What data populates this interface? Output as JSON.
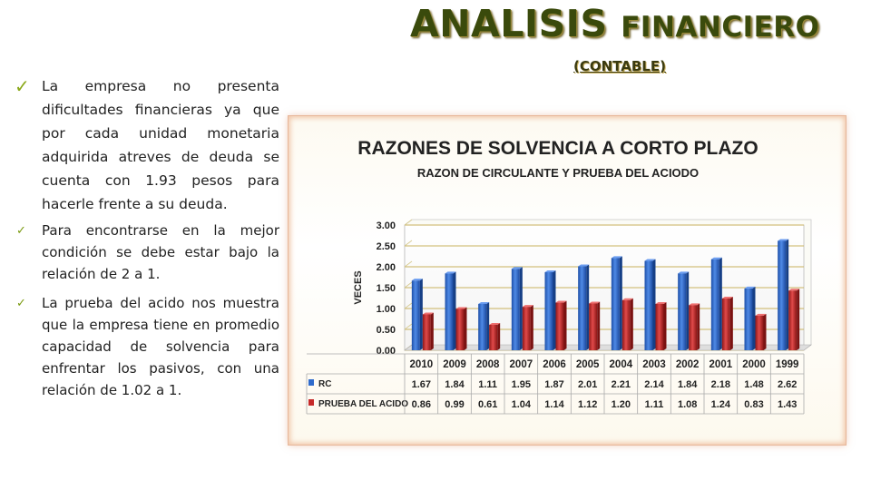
{
  "slide": {
    "title_main": "ANALISIS",
    "title_second": "FINANCIERO",
    "subtitle": "(CONTABLE)",
    "bullets": [
      "La empresa no presenta dificultades financieras ya que por cada unidad monetaria adquirida atreves de deuda se cuenta con 1.93 pesos para hacerle frente a su deuda.",
      "Para encontrarse en la mejor condición se debe estar bajo la relación de 2 a 1.",
      "La prueba del acido nos muestra que la empresa tiene en promedio capacidad de solvencia para enfrentar los pasivos, con una relación de 1.02 a 1."
    ]
  },
  "chart_data": {
    "type": "bar",
    "title": "RAZONES DE SOLVENCIA A CORTO PLAZO",
    "subtitle": "RAZON DE CIRCULANTE Y PRUEBA DEL ACIODO",
    "ylabel": "VECES",
    "xlabel": "",
    "ylim": [
      0,
      3
    ],
    "yticks": [
      "0.00",
      "0.50",
      "1.00",
      "1.50",
      "2.00",
      "2.50",
      "3.00"
    ],
    "categories": [
      "2010",
      "2009",
      "2008",
      "2007",
      "2006",
      "2005",
      "2004",
      "2003",
      "2002",
      "2001",
      "2000",
      "1999"
    ],
    "series": [
      {
        "name": "RC",
        "color": "#2f6bcc",
        "values": [
          1.67,
          1.84,
          1.11,
          1.95,
          1.87,
          2.01,
          2.21,
          2.14,
          1.84,
          2.18,
          1.48,
          2.62
        ],
        "labels": [
          "1.67",
          "1.84",
          "1.11",
          "1.95",
          "1.87",
          "2.01",
          "2.21",
          "2.14",
          "1.84",
          "2.18",
          "1.48",
          "2.62"
        ]
      },
      {
        "name": "PRUEBA DEL ACIDO",
        "color": "#c62a2a",
        "values": [
          0.86,
          0.99,
          0.61,
          1.04,
          1.14,
          1.12,
          1.2,
          1.11,
          1.08,
          1.24,
          0.83,
          1.43
        ],
        "labels": [
          "0.86",
          "0.99",
          "0.61",
          "1.04",
          "1.14",
          "1.12",
          "1.20",
          "1.11",
          "1.08",
          "1.24",
          "0.83",
          "1.43"
        ]
      }
    ],
    "grid": true,
    "legend": "data-table"
  }
}
